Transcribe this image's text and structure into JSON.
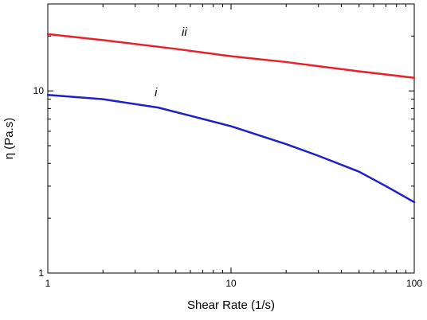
{
  "chart_data": {
    "type": "line",
    "xscale": "log",
    "yscale": "log",
    "xlim": [
      1,
      100
    ],
    "ylim": [
      1,
      30
    ],
    "xlabel": "Shear Rate (1/s)",
    "ylabel": "η (Pa.s)",
    "x_ticks": [
      1,
      10,
      100
    ],
    "x_tick_labels": [
      "1",
      "10",
      "100"
    ],
    "y_ticks": [
      1,
      10
    ],
    "y_tick_labels": [
      "1",
      "10"
    ],
    "grid": false,
    "series": [
      {
        "name": "ii",
        "color": "#e8202a",
        "x": [
          1,
          2,
          5,
          10,
          20,
          50,
          100
        ],
        "y": [
          20.5,
          19.0,
          17.0,
          15.5,
          14.4,
          12.8,
          11.8
        ]
      },
      {
        "name": "i",
        "color": "#1f1fc8",
        "x": [
          1,
          2,
          4,
          6,
          10,
          20,
          30,
          50,
          70,
          100
        ],
        "y": [
          9.5,
          9.0,
          8.1,
          7.3,
          6.4,
          5.1,
          4.4,
          3.6,
          3.0,
          2.45
        ]
      }
    ]
  }
}
